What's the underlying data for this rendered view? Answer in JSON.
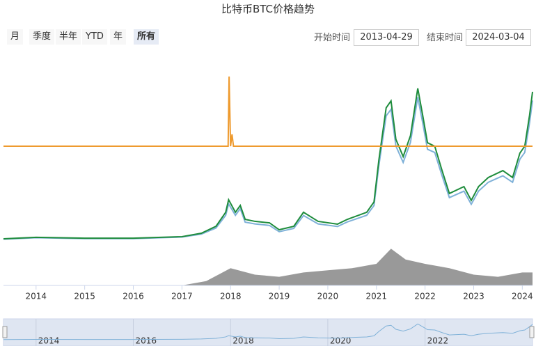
{
  "title": "比特币BTC价格趋势",
  "range_buttons": [
    "月",
    "季度",
    "半年",
    "YTD",
    "年",
    "所有"
  ],
  "selected_button": 5,
  "start_label": "开始时间",
  "start_date": "2013-04-29",
  "end_label": "结束时间",
  "end_date": "2024-03-04",
  "chart_data": {
    "type": "line",
    "xlim": [
      2013.33,
      2024.21
    ],
    "xticks": [
      2014,
      2015,
      2016,
      2017,
      2018,
      2019,
      2020,
      2021,
      2022,
      2023,
      2024
    ],
    "ylim": [
      0,
      100
    ],
    "navigator_ticks": [
      2014,
      2016,
      2018,
      2020,
      2022
    ],
    "series": [
      {
        "color": "#7fb1d8",
        "x": [
          2013.33,
          2014,
          2015,
          2016,
          2017,
          2017.4,
          2017.7,
          2017.9,
          2017.96,
          2018.1,
          2018.2,
          2018.3,
          2018.5,
          2018.8,
          2019,
          2019.3,
          2019.5,
          2019.8,
          2020.2,
          2020.4,
          2020.8,
          2020.95,
          2021.05,
          2021.2,
          2021.3,
          2021.4,
          2021.55,
          2021.7,
          2021.85,
          2021.95,
          2022.05,
          2022.2,
          2022.35,
          2022.5,
          2022.8,
          2022.95,
          2023.1,
          2023.3,
          2023.6,
          2023.8,
          2023.95,
          2024.05,
          2024.15,
          2024.21
        ],
        "values": [
          21.4,
          22.1,
          21.7,
          21.7,
          22.4,
          23.8,
          26.6,
          32.5,
          37.8,
          32.5,
          35.6,
          29.3,
          28.5,
          27.8,
          24.9,
          26.4,
          32.4,
          28.5,
          27.3,
          29.4,
          32.5,
          37.0,
          55.5,
          78.6,
          81.6,
          64.6,
          57.0,
          66.3,
          87.2,
          75.5,
          63.1,
          61.6,
          50.8,
          40.7,
          43.7,
          37.6,
          43.7,
          47.8,
          50.8,
          47.8,
          58.5,
          61.6,
          75.5,
          85.7
        ]
      },
      {
        "color": "#1e8c3c",
        "x": [
          2013.33,
          2014,
          2015,
          2016,
          2017,
          2017.4,
          2017.7,
          2017.9,
          2017.96,
          2018.1,
          2018.2,
          2018.3,
          2018.5,
          2018.8,
          2019,
          2019.3,
          2019.5,
          2019.8,
          2020.2,
          2020.4,
          2020.8,
          2020.95,
          2021.05,
          2021.2,
          2021.3,
          2021.4,
          2021.55,
          2021.7,
          2021.85,
          2021.95,
          2022.05,
          2022.2,
          2022.35,
          2022.5,
          2022.8,
          2022.95,
          2023.1,
          2023.3,
          2023.6,
          2023.8,
          2023.95,
          2024.05,
          2024.15,
          2024.21
        ],
        "values": [
          21.6,
          22.3,
          21.9,
          21.9,
          22.6,
          24.2,
          27.4,
          33.9,
          39.7,
          33.9,
          37.1,
          30.6,
          29.7,
          29.0,
          25.8,
          27.4,
          33.9,
          29.7,
          28.4,
          30.6,
          33.9,
          38.7,
          58.1,
          82.3,
          85.5,
          67.7,
          59.7,
          69.4,
          91.3,
          79.0,
          66.1,
          64.5,
          53.2,
          42.6,
          45.8,
          39.4,
          45.8,
          50.0,
          53.2,
          50.0,
          61.3,
          64.5,
          79.0,
          89.7
        ]
      },
      {
        "color": "#ee9a2e",
        "x": [
          2013.33,
          2017.95,
          2017.97,
          2018.0,
          2018.03,
          2018.06,
          2024.21
        ],
        "values": [
          64.5,
          64.5,
          96.8,
          64.5,
          70,
          64.5,
          64.5
        ]
      },
      {
        "color": "#999999",
        "type": "area",
        "x": [
          2013.33,
          2017.0,
          2017.5,
          2018,
          2018.5,
          2019,
          2019.5,
          2020,
          2020.5,
          2021,
          2021.3,
          2021.6,
          2022,
          2022.5,
          2023,
          2023.5,
          2024,
          2024.21
        ],
        "values": [
          0,
          0,
          2,
          8,
          5,
          4,
          6,
          7,
          8,
          10,
          17,
          12,
          10,
          8,
          5,
          4,
          6,
          6
        ]
      }
    ]
  }
}
